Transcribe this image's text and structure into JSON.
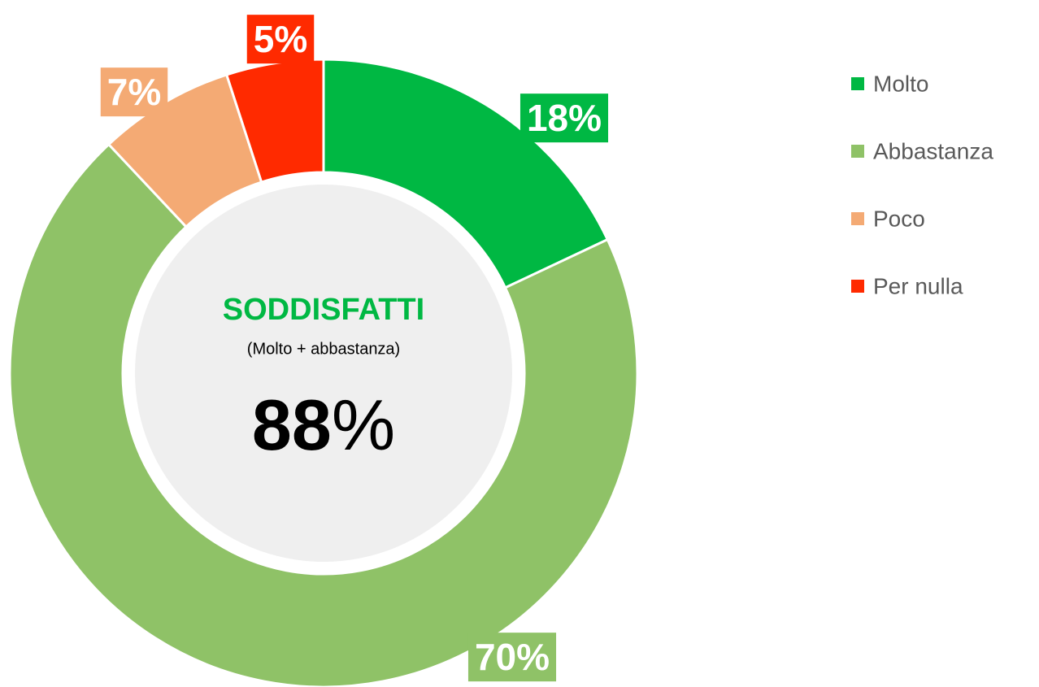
{
  "chart_data": {
    "type": "donut",
    "categories": [
      "Molto",
      "Abbastanza",
      "Poco",
      "Per nulla"
    ],
    "values": [
      18,
      70,
      7,
      5
    ],
    "value_labels": [
      "18%",
      "70%",
      "7%",
      "5%"
    ],
    "colors": [
      "#00b843",
      "#8fc267",
      "#f4aa74",
      "#ff2a00"
    ],
    "legend": "right",
    "center": {
      "title": "SODDISFATTI",
      "note": "(Molto + abbastanza)",
      "value": 88,
      "unit": "%"
    }
  }
}
